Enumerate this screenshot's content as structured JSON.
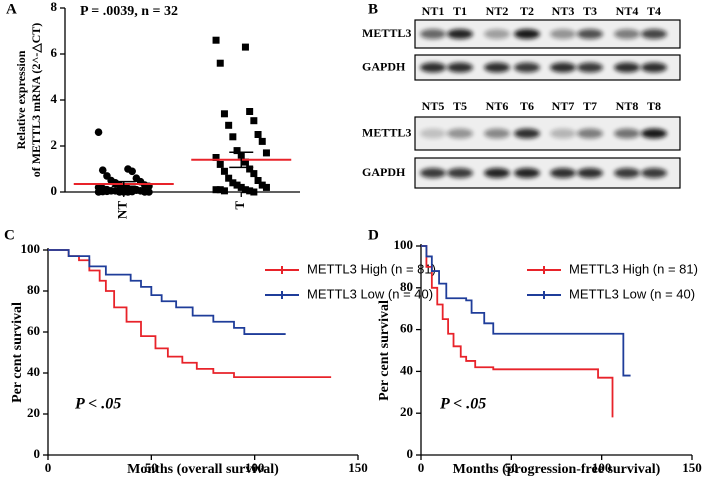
{
  "chart_data": [
    {
      "type": "dot",
      "panel_label": "A",
      "title": "P = .0039, n = 32",
      "ylabel": [
        "Relative expression",
        "of METTL3 mRNA (2^-△CT)"
      ],
      "categories": [
        "NT",
        "T"
      ],
      "values": [
        [
          2.6,
          1.0,
          0.95,
          0.9,
          0.7,
          0.6,
          0.5,
          0.45,
          0.4,
          0.3,
          0.3,
          0.25,
          0.2,
          0.2,
          0.15,
          0.15,
          0.1,
          0.1,
          0.1,
          0.05,
          0.05,
          0.05,
          0,
          0,
          0,
          0,
          0,
          0,
          0.02,
          0.02,
          0.03,
          0.08
        ],
        [
          6.6,
          6.3,
          5.6,
          3.5,
          3.4,
          3.1,
          2.9,
          2.5,
          2.4,
          2.2,
          1.8,
          1.7,
          1.6,
          1.5,
          1.3,
          1.2,
          1.0,
          0.9,
          0.8,
          0.6,
          0.5,
          0.4,
          0.3,
          0.3,
          0.2,
          0.2,
          0.1,
          0.1,
          0.1,
          0.05,
          0.05,
          0
        ]
      ],
      "mean": [
        0.35,
        1.4
      ],
      "sem": [
        0.1,
        0.33
      ],
      "markers": [
        "circle",
        "square"
      ],
      "color": "#000000",
      "mean_color": "#e8232a",
      "ylim": [
        0,
        8
      ],
      "yticks": [
        0,
        2,
        4,
        6,
        8
      ]
    },
    {
      "type": "survival",
      "panel_label": "C",
      "xlabel": "Months (overall survival)",
      "ylabel": "Per cent survival",
      "annotation": "P < .05",
      "xlim": [
        0,
        150
      ],
      "xticks": [
        0,
        50,
        100,
        150
      ],
      "ylim": [
        0,
        100
      ],
      "yticks": [
        0,
        20,
        40,
        60,
        80,
        100
      ],
      "series": [
        {
          "name": "METTL3 High (n = 81)",
          "color": "#e8232a",
          "x": [
            0,
            10,
            10,
            15,
            15,
            20,
            20,
            25,
            25,
            28,
            28,
            32,
            32,
            38,
            38,
            45,
            45,
            52,
            52,
            58,
            58,
            65,
            65,
            72,
            72,
            80,
            80,
            90,
            90,
            137
          ],
          "values": [
            100,
            100,
            97,
            97,
            95,
            95,
            90,
            90,
            85,
            85,
            80,
            80,
            72,
            72,
            65,
            65,
            58,
            58,
            52,
            52,
            48,
            48,
            45,
            45,
            42,
            42,
            40,
            40,
            38,
            38
          ]
        },
        {
          "name": "METTL3 Low (n = 40)",
          "color": "#1f3d9a",
          "x": [
            0,
            10,
            10,
            20,
            20,
            28,
            28,
            40,
            40,
            45,
            45,
            50,
            50,
            55,
            55,
            62,
            62,
            70,
            70,
            80,
            80,
            90,
            90,
            95,
            95,
            115
          ],
          "values": [
            100,
            100,
            97,
            97,
            92,
            92,
            88,
            88,
            85,
            85,
            82,
            82,
            78,
            78,
            75,
            75,
            72,
            72,
            68,
            68,
            65,
            65,
            62,
            62,
            59,
            59
          ]
        }
      ]
    },
    {
      "type": "survival",
      "panel_label": "D",
      "xlabel": "Months (progression-free survival)",
      "ylabel": "Per cent survival",
      "annotation": "P < .05",
      "xlim": [
        0,
        150
      ],
      "xticks": [
        0,
        50,
        100,
        150
      ],
      "ylim": [
        0,
        100
      ],
      "yticks": [
        0,
        20,
        40,
        60,
        80,
        100
      ],
      "series": [
        {
          "name": "METTL3 High (n = 81)",
          "color": "#e8232a",
          "x": [
            0,
            3,
            3,
            6,
            6,
            9,
            9,
            12,
            12,
            15,
            15,
            18,
            18,
            22,
            22,
            25,
            25,
            30,
            30,
            40,
            40,
            98,
            98,
            106,
            106
          ],
          "values": [
            100,
            100,
            90,
            90,
            80,
            80,
            72,
            72,
            65,
            65,
            58,
            58,
            52,
            52,
            47,
            47,
            45,
            45,
            42,
            42,
            41,
            41,
            37,
            37,
            18
          ]
        },
        {
          "name": "METTL3 Low (n = 40)",
          "color": "#1f3d9a",
          "x": [
            0,
            3,
            3,
            6,
            6,
            10,
            10,
            14,
            14,
            25,
            25,
            28,
            28,
            35,
            35,
            40,
            40,
            112,
            112,
            116
          ],
          "values": [
            100,
            100,
            95,
            95,
            88,
            88,
            82,
            82,
            75,
            75,
            74,
            74,
            68,
            68,
            63,
            63,
            58,
            58,
            38,
            38
          ]
        }
      ]
    }
  ],
  "blot": {
    "panel_label": "B",
    "groups": [
      {
        "lanes": [
          "NT1",
          "T1",
          "NT2",
          "T2",
          "NT3",
          "T3",
          "NT4",
          "T4"
        ],
        "rows": [
          "METTL3",
          "GAPDH"
        ]
      },
      {
        "lanes": [
          "NT5",
          "T5",
          "NT6",
          "T6",
          "NT7",
          "T7",
          "NT8",
          "T8"
        ],
        "rows": [
          "METTL3",
          "GAPDH"
        ]
      }
    ]
  }
}
